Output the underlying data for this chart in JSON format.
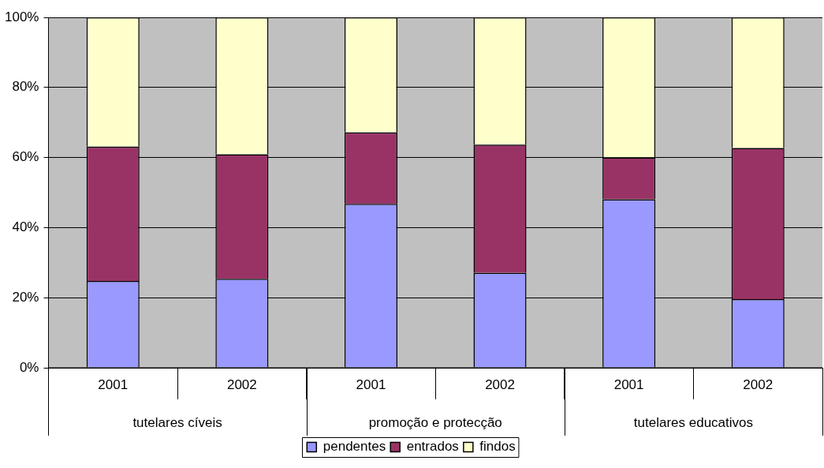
{
  "chart_data": {
    "type": "bar",
    "stacked": true,
    "categories": [
      "2001",
      "2002",
      "2001",
      "2002",
      "2001",
      "2002"
    ],
    "annotations": [
      "tutelares cíveis",
      "promoção e protecção",
      "tutelares educativos"
    ],
    "series": [
      {
        "name": "pendentes",
        "color": "#9999ff",
        "values": [
          24.8,
          25.4,
          46.8,
          27.1,
          48.1,
          19.6
        ]
      },
      {
        "name": "entrados",
        "color": "#993366",
        "values": [
          38.3,
          35.5,
          20.4,
          36.6,
          11.9,
          43.1
        ]
      },
      {
        "name": "findos",
        "color": "#ffffcc",
        "values": [
          36.9,
          39.1,
          32.8,
          36.3,
          40.0,
          37.3
        ]
      }
    ],
    "ylim": [
      0,
      100
    ],
    "yticks": [
      {
        "value": 0,
        "label": "0%"
      },
      {
        "value": 20,
        "label": "20%"
      },
      {
        "value": 40,
        "label": "40%"
      },
      {
        "value": 60,
        "label": "60%"
      },
      {
        "value": 80,
        "label": "80%"
      },
      {
        "value": 100,
        "label": "100%"
      }
    ],
    "grid": "y",
    "legend": "bottom"
  }
}
